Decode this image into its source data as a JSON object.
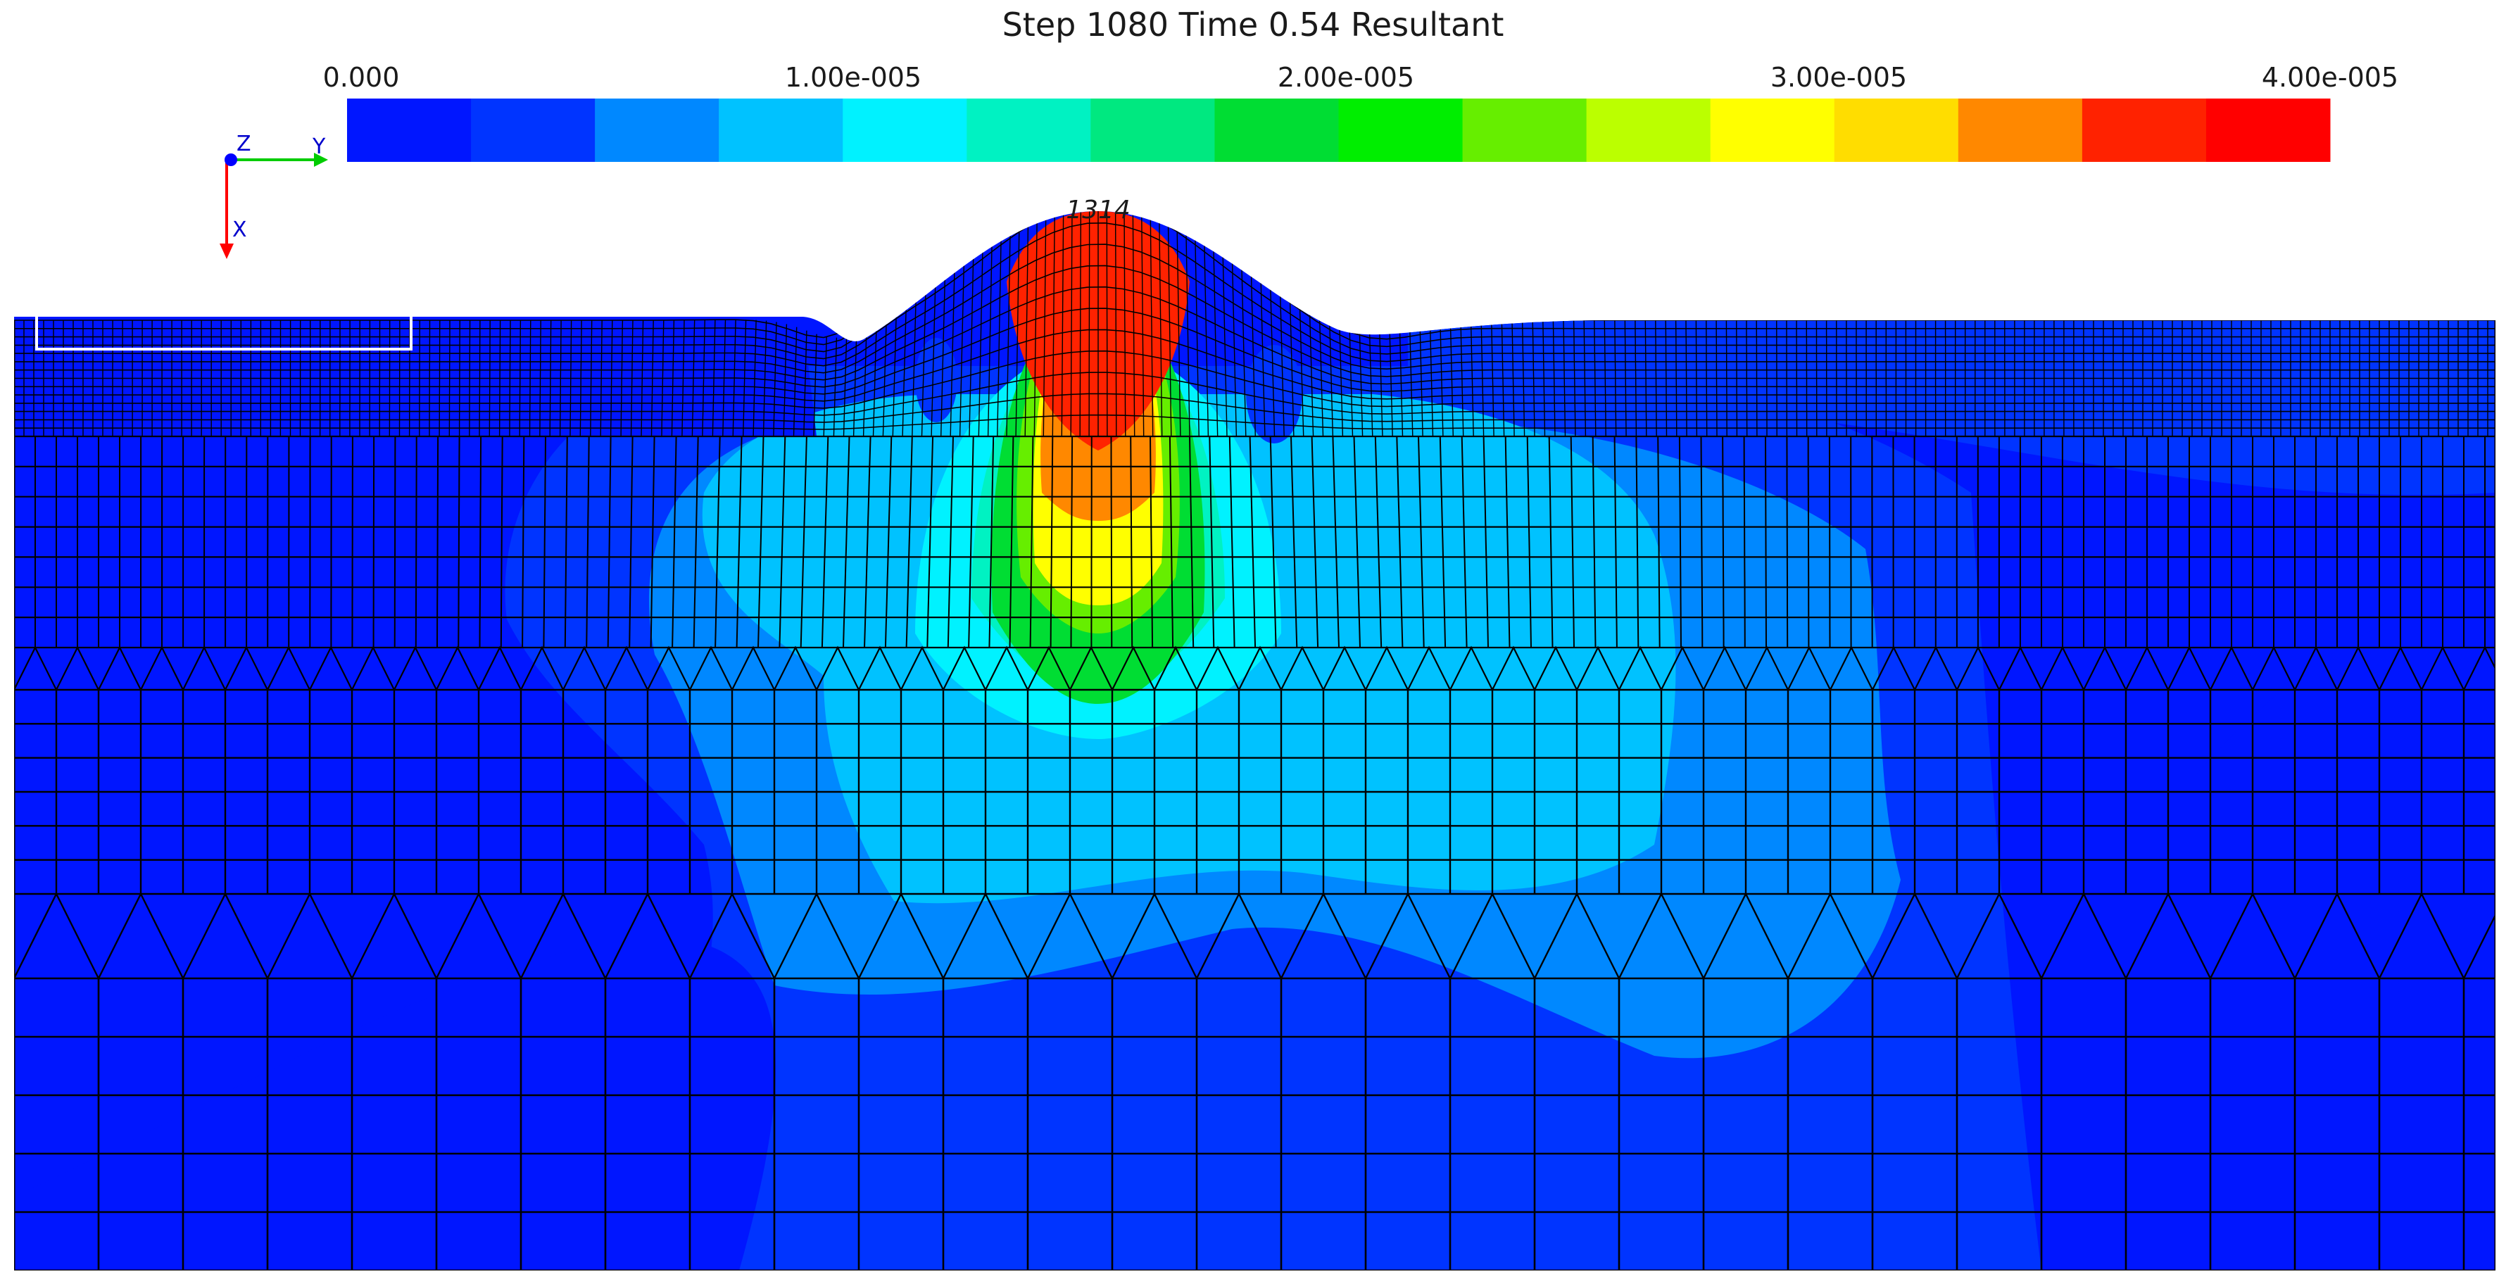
{
  "plot": {
    "title": "Step 1080 Time 0.54 Resultant",
    "node_label": "1314"
  },
  "colorbar": {
    "ticks": [
      "0.000",
      "1.00e-005",
      "2.00e-005",
      "3.00e-005",
      "4.00e-005"
    ],
    "range": [
      0,
      4e-05
    ],
    "colors": [
      "#0016ff",
      "#0034ff",
      "#0088ff",
      "#00c2ff",
      "#00f2ff",
      "#00f2c2",
      "#00e880",
      "#00dd33",
      "#00ee00",
      "#66ee00",
      "#bbff00",
      "#ffff00",
      "#ffdd00",
      "#ff8800",
      "#ff2200",
      "#ff0000"
    ]
  },
  "axes_triad": {
    "z_label": "Z",
    "y_label": "Y",
    "x_label": "X",
    "y_color": "#00cc00",
    "x_color": "#ff0000",
    "z_color": "#0000ff"
  },
  "colors": {
    "background": "#0016ff",
    "mesh_line": "#000000",
    "outline": "#ffffff"
  }
}
